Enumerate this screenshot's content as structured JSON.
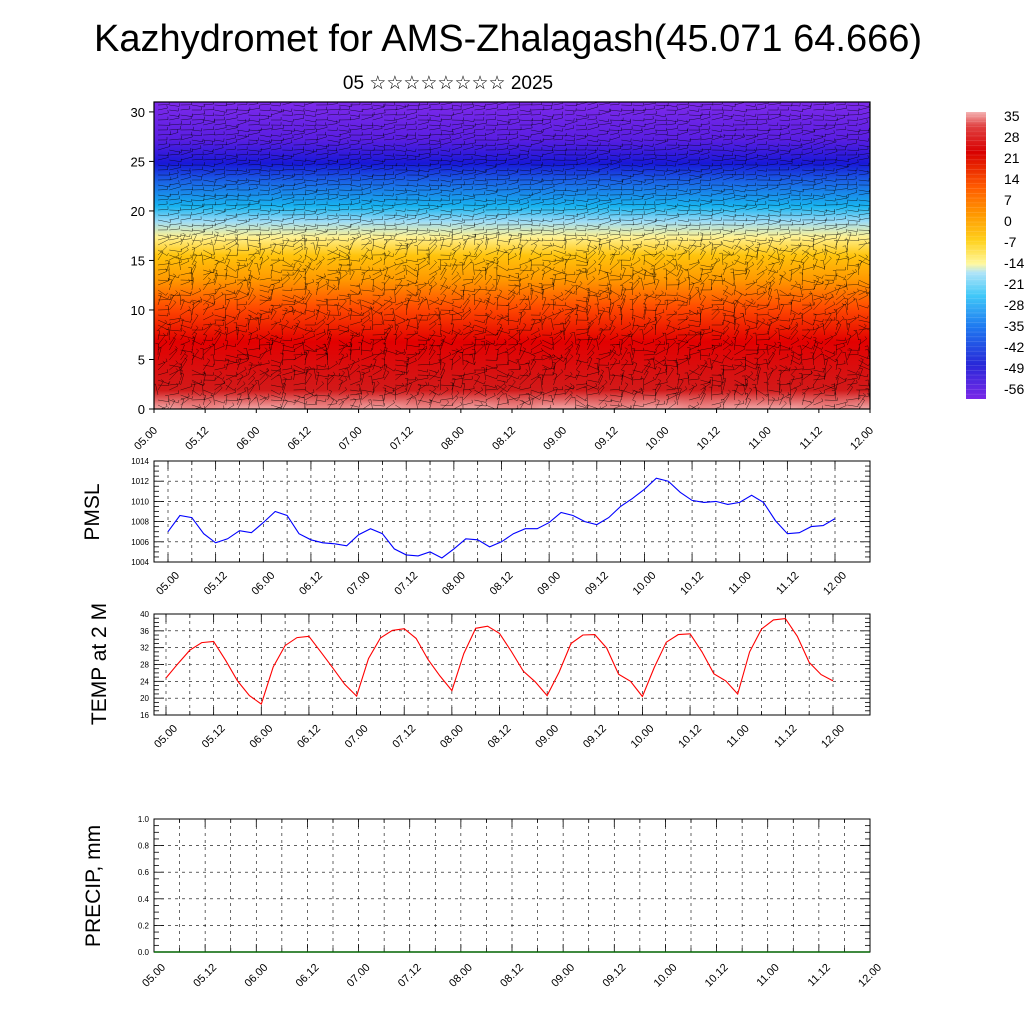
{
  "header": {
    "title": "Kazhydromet for AMS-Zhalagash(45.071 64.666)",
    "subtitle": "05 ☆☆☆☆☆☆☆☆ 2025"
  },
  "chart_data": [
    {
      "type": "heatmap",
      "description_of_fill": "temperature/pressure level cross-section with wind barbs",
      "y_ticks": [
        "0",
        "5",
        "10",
        "15",
        "20",
        "25",
        "30"
      ],
      "ylim": [
        0,
        31
      ],
      "x_ticks": [
        "05.00",
        "05.12",
        "06.00",
        "06.12",
        "07.00",
        "07.12",
        "08.00",
        "08.12",
        "09.00",
        "09.12",
        "10.00",
        "10.12",
        "11.00",
        "11.12",
        "12.00"
      ],
      "colorbar": {
        "labels": [
          "35",
          "28",
          "21",
          "14",
          "7",
          "0",
          "-7",
          "-14",
          "-21",
          "-28",
          "-35",
          "-42",
          "-49",
          "-56"
        ],
        "colors": [
          "#f4b3b3",
          "#e04040",
          "#c80000",
          "#e82010",
          "#ff5a00",
          "#ff9a00",
          "#ffd21e",
          "#fff8a0",
          "#b0e4f8",
          "#40c8f8",
          "#1e78f0",
          "#2828d8",
          "#4a1ae0",
          "#7a28e8"
        ]
      }
    },
    {
      "type": "line",
      "ylabel": "PMSL",
      "ylim": [
        1004,
        1014
      ],
      "y_ticks": [
        "1004",
        "1006",
        "1008",
        "1010",
        "1012",
        "1014"
      ],
      "x_ticks": [
        "05.00",
        "05.12",
        "06.00",
        "06.12",
        "07.00",
        "07.12",
        "08.00",
        "08.12",
        "09.00",
        "09.12",
        "10.00",
        "10.12",
        "11.00",
        "11.12",
        "12.00"
      ],
      "color": "#0000ff",
      "values": [
        1007.0,
        1008.6,
        1008.4,
        1006.8,
        1005.9,
        1006.3,
        1007.1,
        1006.9,
        1007.9,
        1009.0,
        1008.6,
        1006.8,
        1006.2,
        1005.9,
        1005.8,
        1005.6,
        1006.7,
        1007.3,
        1006.8,
        1005.3,
        1004.7,
        1004.6,
        1005.0,
        1004.4,
        1005.3,
        1006.3,
        1006.2,
        1005.5,
        1006.0,
        1006.8,
        1007.3,
        1007.3,
        1007.9,
        1008.9,
        1008.6,
        1008.0,
        1007.7,
        1008.4,
        1009.5,
        1010.3,
        1011.2,
        1012.3,
        1012.0,
        1010.9,
        1010.1,
        1009.9,
        1010.0,
        1009.7,
        1009.9,
        1010.6,
        1009.9,
        1008.1,
        1006.8,
        1006.9,
        1007.5,
        1007.6,
        1008.3
      ]
    },
    {
      "type": "line",
      "ylabel": "TEMP at 2 M",
      "ylim": [
        16,
        40
      ],
      "y_ticks": [
        "16",
        "20",
        "24",
        "28",
        "32",
        "36",
        "40"
      ],
      "x_ticks": [
        "05.00",
        "05.12",
        "06.00",
        "06.12",
        "07.00",
        "07.12",
        "08.00",
        "08.12",
        "09.00",
        "09.12",
        "10.00",
        "10.12",
        "11.00",
        "11.12",
        "12.00"
      ],
      "color": "#ff0000",
      "values": [
        24.8,
        28.2,
        31.4,
        33.2,
        33.5,
        29.0,
        24.1,
        20.6,
        18.6,
        27.4,
        32.5,
        34.4,
        34.7,
        31.0,
        27.2,
        23.3,
        20.5,
        29.4,
        34.3,
        36.1,
        36.5,
        34.2,
        29.2,
        25.3,
        21.8,
        30.6,
        36.6,
        37.1,
        35.4,
        31.1,
        26.4,
        23.9,
        20.6,
        26.2,
        33.0,
        35.0,
        35.1,
        31.9,
        25.7,
        24.0,
        20.4,
        27.3,
        33.3,
        35.1,
        35.3,
        31.0,
        25.8,
        24.1,
        21.0,
        31.0,
        36.4,
        38.6,
        38.9,
        34.7,
        28.5,
        25.6,
        24.1
      ]
    },
    {
      "type": "line",
      "ylabel": "PRECIP, mm",
      "ylim": [
        0.0,
        1.0
      ],
      "y_ticks": [
        "0.0",
        "0.2",
        "0.4",
        "0.6",
        "0.8",
        "1.0"
      ],
      "x_ticks": [
        "05.00",
        "05.12",
        "06.00",
        "06.12",
        "07.00",
        "07.12",
        "08.00",
        "08.12",
        "09.00",
        "09.12",
        "10.00",
        "10.12",
        "11.00",
        "11.12",
        "12.00"
      ],
      "color": "#006400",
      "values": [
        0,
        0,
        0,
        0,
        0,
        0,
        0,
        0,
        0,
        0,
        0,
        0,
        0,
        0,
        0,
        0,
        0,
        0,
        0,
        0,
        0,
        0,
        0,
        0,
        0,
        0,
        0,
        0,
        0,
        0,
        0,
        0,
        0,
        0,
        0,
        0,
        0,
        0,
        0,
        0,
        0,
        0,
        0,
        0,
        0,
        0,
        0,
        0,
        0,
        0,
        0,
        0,
        0,
        0,
        0,
        0,
        0
      ]
    }
  ]
}
